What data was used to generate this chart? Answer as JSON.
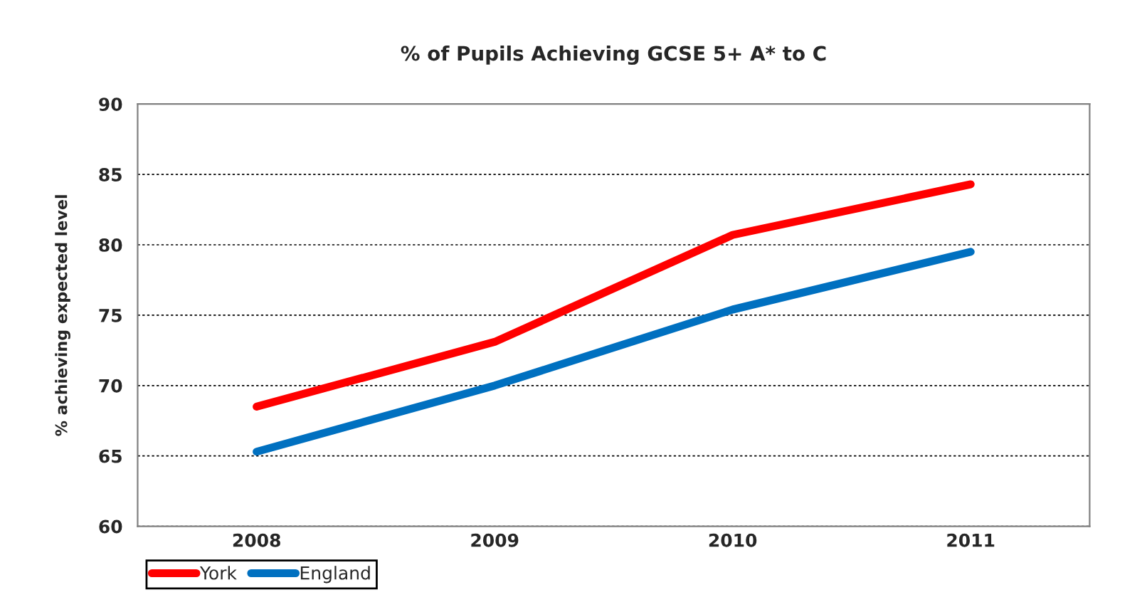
{
  "chart_data": {
    "type": "line",
    "title": "% of Pupils Achieving GCSE 5+ A* to C",
    "ylabel": "% achieving expected level",
    "categories": [
      "2008",
      "2009",
      "2010",
      "2011"
    ],
    "series": [
      {
        "name": "York",
        "color": "#ff0000",
        "values": [
          68.5,
          73.1,
          80.7,
          84.3
        ]
      },
      {
        "name": "England",
        "color": "#0070c0",
        "values": [
          65.3,
          70.0,
          75.4,
          79.5
        ]
      }
    ],
    "ylim": [
      60,
      90
    ],
    "yticks": [
      60,
      65,
      70,
      75,
      80,
      85,
      90
    ],
    "grid": "y",
    "legend": "bottom left",
    "marker": "none",
    "line_style": "solid"
  }
}
